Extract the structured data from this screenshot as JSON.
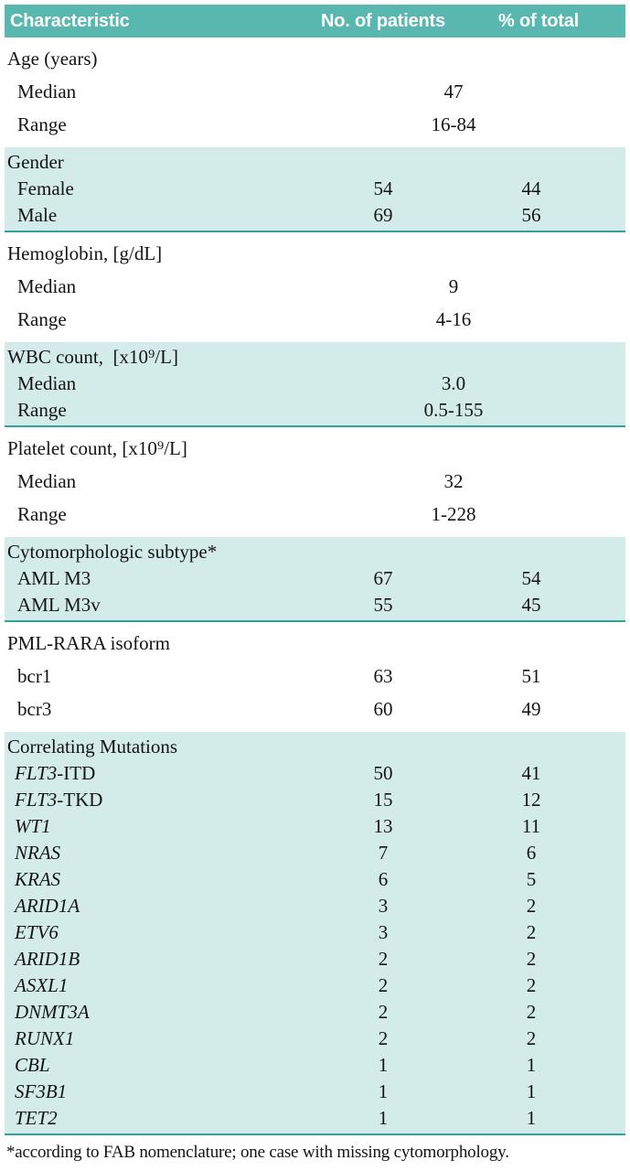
{
  "header": {
    "characteristic": "Characteristic",
    "patients": "No. of patients",
    "percent": "% of total"
  },
  "table": {
    "sections": [
      {
        "shaded": false,
        "rows": [
          {
            "kind": "category",
            "label": "Age (years)"
          },
          {
            "kind": "span",
            "label": "Median",
            "value": "47",
            "indent": true
          },
          {
            "kind": "span",
            "label": "Range",
            "value": "16-84",
            "indent": true
          }
        ]
      },
      {
        "shaded": true,
        "rows": [
          {
            "kind": "category",
            "label": "Gender"
          },
          {
            "kind": "data",
            "label": "Female",
            "patients": "54",
            "percent": "44",
            "indent": true
          },
          {
            "kind": "data",
            "label": "Male",
            "patients": "69",
            "percent": "56",
            "indent": true
          }
        ]
      },
      {
        "shaded": false,
        "rows": [
          {
            "kind": "category",
            "label": "Hemoglobin, [g/dL]"
          },
          {
            "kind": "span",
            "label": "Median",
            "value": "9",
            "indent": true
          },
          {
            "kind": "span",
            "label": "Range",
            "value": "4-16",
            "indent": true
          }
        ]
      },
      {
        "shaded": true,
        "rows": [
          {
            "kind": "category",
            "label": "WBC count,  [x10⁹/L]"
          },
          {
            "kind": "span",
            "label": "Median",
            "value": "3.0",
            "indent": true
          },
          {
            "kind": "span",
            "label": "Range",
            "value": "0.5-155",
            "indent": true
          }
        ]
      },
      {
        "shaded": false,
        "rows": [
          {
            "kind": "category",
            "label": "Platelet count, [x10⁹/L]"
          },
          {
            "kind": "span",
            "label": "Median",
            "value": "32",
            "indent": true
          },
          {
            "kind": "span",
            "label": "Range",
            "value": "1-228",
            "indent": true
          }
        ]
      },
      {
        "shaded": true,
        "rows": [
          {
            "kind": "category",
            "label": "Cytomorphologic subtype*"
          },
          {
            "kind": "data",
            "label": "AML M3",
            "patients": "67",
            "percent": "54",
            "indent": true
          },
          {
            "kind": "data",
            "label": "AML M3v",
            "patients": "55",
            "percent": "45",
            "indent": true
          }
        ]
      },
      {
        "shaded": false,
        "rows": [
          {
            "kind": "category",
            "label": "PML-RARA isoform"
          },
          {
            "kind": "data",
            "label": "bcr1",
            "patients": "63",
            "percent": "51",
            "indent": true
          },
          {
            "kind": "data",
            "label": "bcr3",
            "patients": "60",
            "percent": "49",
            "indent": true
          }
        ]
      },
      {
        "shaded": true,
        "compact": true,
        "rows": [
          {
            "kind": "category",
            "label": "Correlating Mutations"
          },
          {
            "kind": "data",
            "label_italic": "FLT3",
            "label": "-ITD",
            "patients": "50",
            "percent": "41",
            "indent": true
          },
          {
            "kind": "data",
            "label_italic": "FLT3",
            "label": "-TKD",
            "patients": "15",
            "percent": "12",
            "indent": true
          },
          {
            "kind": "data",
            "label_italic": "WT1",
            "label": "",
            "patients": "13",
            "percent": "11",
            "indent": true
          },
          {
            "kind": "data",
            "label_italic": "NRAS",
            "label": "",
            "patients": "7",
            "percent": "6",
            "indent": true
          },
          {
            "kind": "data",
            "label_italic": "KRAS",
            "label": "",
            "patients": "6",
            "percent": "5",
            "indent": true
          },
          {
            "kind": "data",
            "label_italic": "ARID1A",
            "label": "",
            "patients": "3",
            "percent": "2",
            "indent": true
          },
          {
            "kind": "data",
            "label_italic": "ETV6",
            "label": "",
            "patients": "3",
            "percent": "2",
            "indent": true
          },
          {
            "kind": "data",
            "label_italic": "ARID1B",
            "label": "",
            "patients": "2",
            "percent": "2",
            "indent": true
          },
          {
            "kind": "data",
            "label_italic": "ASXL1",
            "label": "",
            "patients": "2",
            "percent": "2",
            "indent": true
          },
          {
            "kind": "data",
            "label_italic": "DNMT3A",
            "label": "",
            "patients": "2",
            "percent": "2",
            "indent": true
          },
          {
            "kind": "data",
            "label_italic": "RUNX1",
            "label": "",
            "patients": "2",
            "percent": "2",
            "indent": true
          },
          {
            "kind": "data",
            "label_italic": "CBL",
            "label": "",
            "patients": "1",
            "percent": "1",
            "indent": true
          },
          {
            "kind": "data",
            "label_italic": "SF3B1",
            "label": "",
            "patients": "1",
            "percent": "1",
            "indent": true
          },
          {
            "kind": "data",
            "label_italic": "TET2",
            "label": "",
            "patients": "1",
            "percent": "1",
            "indent": true
          }
        ]
      }
    ]
  },
  "footnote": "*according to FAB nomenclature; one case with missing cytomorphology.",
  "colors": {
    "header_teal": "#58b7ae",
    "row_teal": "#d3ecea",
    "rule_teal": "#2fa29b",
    "header_text": "#ffffff",
    "body_text": "#141414"
  }
}
